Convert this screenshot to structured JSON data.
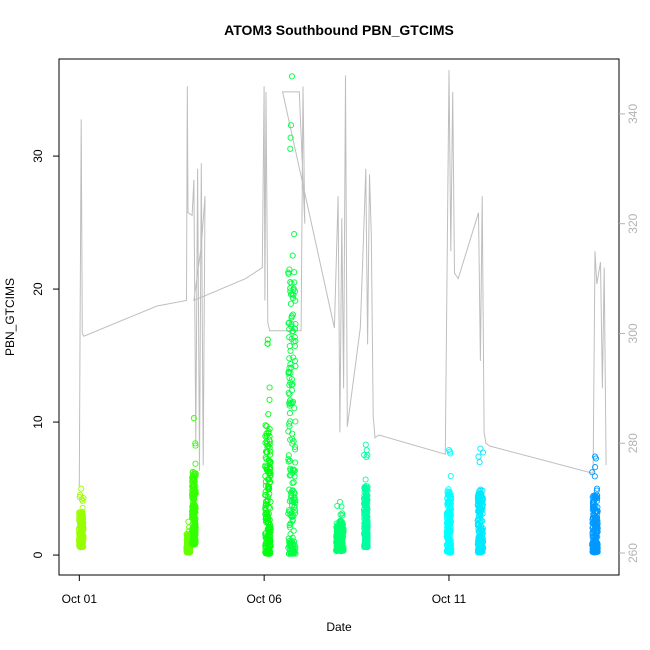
{
  "chart_data": {
    "type": "scatter",
    "title": "ATOM3 Southbound PBN_GTCIMS",
    "xlabel": "Date",
    "ylabel": "PBN_GTCIMS",
    "x_ticks": [
      "Oct 01",
      "Oct 06",
      "Oct 11"
    ],
    "x_tick_values": [
      1,
      6,
      11
    ],
    "xlim": [
      0.45,
      15.6
    ],
    "ylim": [
      -1.5,
      37.3
    ],
    "y_ticks": [
      0,
      10,
      20,
      30
    ],
    "y2lim": [
      256,
      350
    ],
    "y2_ticks": [
      260,
      280,
      300,
      320,
      340
    ],
    "y2_tick_labels": [
      "260",
      "280",
      "300",
      "320",
      "340"
    ],
    "grid": false,
    "series": [
      {
        "kind": "points",
        "clusters": [
          {
            "x": 1.05,
            "spread": 0.12,
            "ymin": 0.6,
            "ymax": 5.0,
            "color": "#99ff00"
          },
          {
            "x": 3.95,
            "spread": 0.1,
            "ymin": 0.2,
            "ymax": 2.5,
            "color": "#66ff00"
          },
          {
            "x": 4.1,
            "spread": 0.1,
            "ymin": 0.8,
            "ymax": 10.3,
            "color": "#33ff00"
          },
          {
            "x": 6.1,
            "spread": 0.15,
            "ymin": 0.1,
            "ymax": 16.2,
            "color": "#00ff10"
          },
          {
            "x": 6.75,
            "spread": 0.2,
            "ymin": 0.1,
            "ymax": 36.0,
            "color": "#00ff40"
          },
          {
            "x": 8.05,
            "spread": 0.2,
            "ymin": 0.3,
            "ymax": 4.0,
            "color": "#00ff70"
          },
          {
            "x": 8.75,
            "spread": 0.1,
            "ymin": 0.6,
            "ymax": 8.3,
            "color": "#00ffa0"
          },
          {
            "x": 11.0,
            "spread": 0.12,
            "ymin": 0.2,
            "ymax": 7.9,
            "color": "#00ffff"
          },
          {
            "x": 11.85,
            "spread": 0.15,
            "ymin": 0.2,
            "ymax": 8.0,
            "color": "#00eaff"
          },
          {
            "x": 14.95,
            "spread": 0.15,
            "ymin": 0.2,
            "ymax": 7.4,
            "color": "#0099ff"
          }
        ]
      },
      {
        "kind": "secondary_line",
        "color": "#bebebe",
        "path": [
          [
            1.0,
            272
          ],
          [
            1.02,
            302
          ],
          [
            1.05,
            339
          ],
          [
            1.08,
            300
          ],
          [
            1.12,
            299.5
          ],
          [
            3.1,
            305
          ],
          [
            3.9,
            306
          ],
          [
            3.92,
            345
          ],
          [
            3.94,
            322
          ],
          [
            4.05,
            321.5
          ],
          [
            4.1,
            328
          ],
          [
            4.15,
            280
          ],
          [
            4.2,
            330
          ],
          [
            4.25,
            275
          ],
          [
            4.3,
            331
          ],
          [
            4.35,
            276
          ],
          [
            4.4,
            325
          ],
          [
            4.3,
            316
          ],
          [
            4.1,
            306
          ],
          [
            5.5,
            310
          ],
          [
            5.95,
            312
          ],
          [
            6.0,
            345
          ],
          [
            6.02,
            306
          ],
          [
            6.05,
            344
          ],
          [
            6.1,
            302
          ],
          [
            6.15,
            300.5
          ],
          [
            7.0,
            300.5
          ],
          [
            7.05,
            345
          ],
          [
            7.1,
            320
          ],
          [
            6.95,
            344
          ],
          [
            6.5,
            344
          ],
          [
            7.9,
            301
          ],
          [
            8.0,
            325
          ],
          [
            8.05,
            282
          ],
          [
            8.1,
            321
          ],
          [
            8.15,
            290
          ],
          [
            8.2,
            347
          ],
          [
            8.25,
            283
          ],
          [
            8.6,
            301
          ],
          [
            8.7,
            320
          ],
          [
            8.75,
            330
          ],
          [
            8.8,
            298
          ],
          [
            8.85,
            329
          ],
          [
            8.9,
            318
          ],
          [
            8.95,
            285
          ],
          [
            9.0,
            281
          ],
          [
            9.1,
            281.5
          ],
          [
            10.9,
            278
          ],
          [
            11.0,
            348
          ],
          [
            11.05,
            315
          ],
          [
            11.1,
            344
          ],
          [
            11.15,
            311
          ],
          [
            11.25,
            310
          ],
          [
            11.8,
            322
          ],
          [
            11.85,
            295
          ],
          [
            11.9,
            325
          ],
          [
            11.95,
            282
          ],
          [
            12.0,
            280
          ],
          [
            12.1,
            279.5
          ],
          [
            14.9,
            274.5
          ],
          [
            14.95,
            315
          ],
          [
            15.0,
            309
          ],
          [
            15.1,
            313
          ],
          [
            15.15,
            290
          ],
          [
            15.2,
            312
          ],
          [
            15.25,
            276
          ]
        ]
      }
    ]
  }
}
